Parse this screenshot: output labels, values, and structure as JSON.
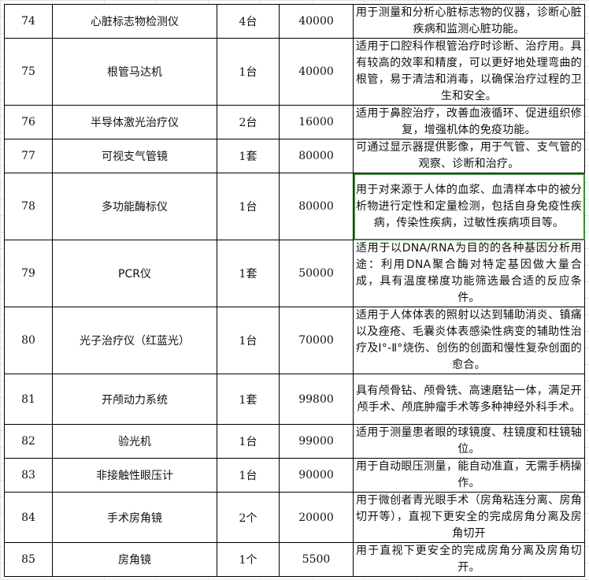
{
  "selection_color": "#3a8a32",
  "rows": [
    {
      "no": "74",
      "name": "心脏标志物检测仪",
      "qty": "4台",
      "price": "40000",
      "desc": "用于测量和分析心脏标志物的仪器，诊断心脏疾病和监测心脏功能。"
    },
    {
      "no": "75",
      "name": "根管马达机",
      "qty": "1台",
      "price": "40000",
      "desc": "适用于口腔科作根管治疗时诊断、治疗用。具有较高的效率和精度，可以更好地处理弯曲的根管，易于清洁和消毒，以确保治疗过程的卫生和安全。"
    },
    {
      "no": "76",
      "name": "半导体激光治疗仪",
      "qty": "2台",
      "price": "16000",
      "desc": "适用于鼻腔治疗，改善血液循环、促进组织修复，增强机体的免疫功能。"
    },
    {
      "no": "77",
      "name": "可视支气管镜",
      "qty": "1套",
      "price": "80000",
      "desc": "可通过显示器提供影像，用于气管、支气管的观察、诊断和治疗。"
    },
    {
      "no": "78",
      "name": "多功能酶标仪",
      "qty": "1台",
      "price": "80000",
      "desc": "用于对来源于人体的血浆、血清样本中的被分析物进行定性和定量检测，包括自身免疫性疾病，传染性疾病，过敏性疾病项目等。"
    },
    {
      "no": "79",
      "name": "PCR仪",
      "qty": "1套",
      "price": "50000",
      "desc": "适用于以DNA/RNA为目的的各种基因分析用途：利用DNA聚合酶对特定基因做大量合成，具有温度梯度功能筛选最合适的反应条件。"
    },
    {
      "no": "80",
      "name": "光子治疗仪（红蓝光）",
      "qty": "1台",
      "price": "70000",
      "desc": "适用于人体体表的照射以达到辅助消炎、镇痛以及痤疮、毛囊炎体表感染性病变的辅助性治疗及Ⅰ°-Ⅱ°烧伤、创伤的创面和慢性复杂创面的愈合。"
    },
    {
      "no": "81",
      "name": "开颅动力系统",
      "qty": "1套",
      "price": "99800",
      "desc": "具有颅骨钻、颅骨铣、高速磨钻一体，满足开颅手术、颅底肿瘤手术等多种神经外科手术。"
    },
    {
      "no": "82",
      "name": "验光机",
      "qty": "1台",
      "price": "99000",
      "desc": "适用于测量患者眼的球镜度、柱镜度和柱镜轴位。"
    },
    {
      "no": "83",
      "name": "非接触性眼压计",
      "qty": "1台",
      "price": "90000",
      "desc": "用于自动眼压测量，能自动准直，无需手柄操作。"
    },
    {
      "no": "84",
      "name": "手术房角镜",
      "qty": "2个",
      "price": "20000",
      "desc": "用于微创者青光眼手术（房角粘连分离、房角切开等），直视下更安全的完成房角分离及房角切开"
    },
    {
      "no": "85",
      "name": "房角镜",
      "qty": "1个",
      "price": "5500",
      "desc": "用于直视下更安全的完成房角分离及房角切开。"
    }
  ]
}
